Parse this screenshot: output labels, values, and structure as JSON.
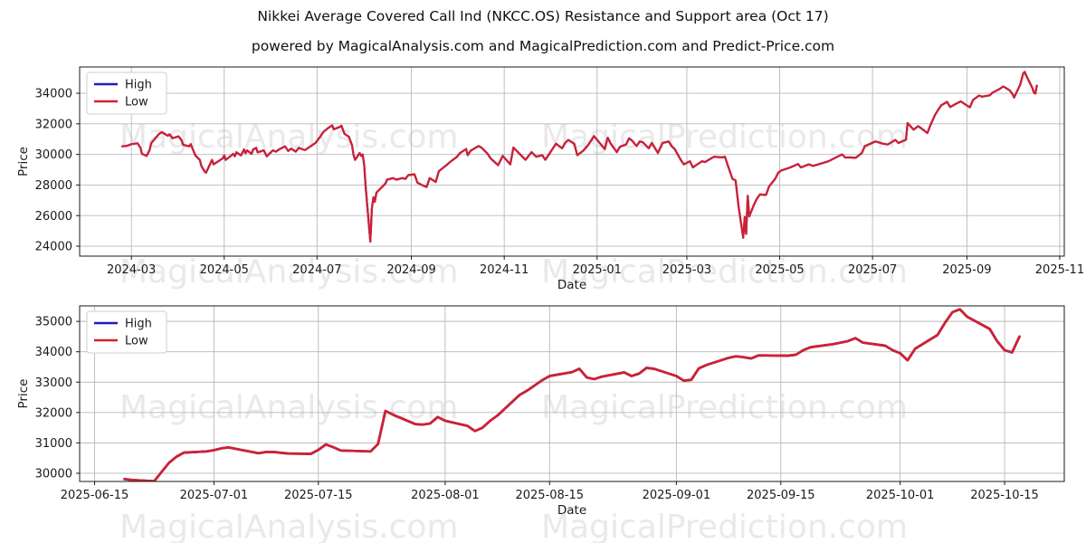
{
  "title": "Nikkei Average Covered Call Ind (NKCC.OS) Resistance and Support area (Oct 17)",
  "subtitle": "powered by MagicalAnalysis.com and MagicalPrediction.com and Predict-Price.com",
  "watermarks": {
    "texts": [
      "MagicalAnalysis.com",
      "MagicalPrediction.com"
    ]
  },
  "colors": {
    "high": "#1c1cbe",
    "low": "#d12030",
    "grid": "#b9b9b9",
    "spine": "#1a1a1a",
    "tick_text": "#1a1a1a",
    "watermark": "#e9e9e9",
    "background": "#ffffff",
    "legend_border": "#cfcfcf"
  },
  "chart_data": [
    {
      "name": "overview-chart",
      "type": "line",
      "xlabel": "Date",
      "ylabel": "Price",
      "grid": true,
      "xlim": [
        "2024-01-27",
        "2025-11-04"
      ],
      "ylim": [
        23350,
        35720
      ],
      "x_ticks": [
        {
          "d": "2024-03-01",
          "label": "2024-03"
        },
        {
          "d": "2024-05-01",
          "label": "2024-05"
        },
        {
          "d": "2024-07-01",
          "label": "2024-07"
        },
        {
          "d": "2024-09-01",
          "label": "2024-09"
        },
        {
          "d": "2024-11-01",
          "label": "2024-11"
        },
        {
          "d": "2025-01-01",
          "label": "2025-01"
        },
        {
          "d": "2025-03-01",
          "label": "2025-03"
        },
        {
          "d": "2025-05-01",
          "label": "2025-05"
        },
        {
          "d": "2025-07-01",
          "label": "2025-07"
        },
        {
          "d": "2025-09-01",
          "label": "2025-09"
        },
        {
          "d": "2025-11-01",
          "label": "2025-11"
        }
      ],
      "y_ticks": [
        {
          "v": 24000,
          "label": "24000"
        },
        {
          "v": 26000,
          "label": "26000"
        },
        {
          "v": 28000,
          "label": "28000"
        },
        {
          "v": 30000,
          "label": "30000"
        },
        {
          "v": 32000,
          "label": "32000"
        },
        {
          "v": 34000,
          "label": "34000"
        }
      ],
      "legend": {
        "position": "upper left",
        "entries": [
          {
            "label": "High",
            "color_key": "high"
          },
          {
            "label": "Low",
            "color_key": "low"
          }
        ]
      },
      "series": [
        {
          "name": "High",
          "color_key": "high",
          "y_ref": "Low",
          "note": "blue line exactly overlapped (hidden) by Low line in the pixels"
        },
        {
          "name": "Low",
          "color_key": "low",
          "dates": [
            "2024-02-24",
            "2024-02-27",
            "2024-03-01",
            "2024-03-05",
            "2024-03-07",
            "2024-03-08",
            "2024-03-11",
            "2024-03-13",
            "2024-03-14",
            "2024-03-19",
            "2024-03-21",
            "2024-03-25",
            "2024-03-26",
            "2024-03-28",
            "2024-04-01",
            "2024-04-03",
            "2024-04-04",
            "2024-04-08",
            "2024-04-09",
            "2024-04-10",
            "2024-04-12",
            "2024-04-15",
            "2024-04-16",
            "2024-04-18",
            "2024-04-19",
            "2024-04-23",
            "2024-04-24",
            "2024-04-30",
            "2024-05-01",
            "2024-05-02",
            "2024-05-07",
            "2024-05-08",
            "2024-05-09",
            "2024-05-12",
            "2024-05-14",
            "2024-05-15",
            "2024-05-16",
            "2024-05-19",
            "2024-05-20",
            "2024-05-22",
            "2024-05-23",
            "2024-05-27",
            "2024-05-29",
            "2024-06-02",
            "2024-06-04",
            "2024-06-06",
            "2024-06-10",
            "2024-06-12",
            "2024-06-14",
            "2024-06-17",
            "2024-06-19",
            "2024-06-23",
            "2024-06-26",
            "2024-06-30",
            "2024-07-03",
            "2024-07-05",
            "2024-07-08",
            "2024-07-11",
            "2024-07-12",
            "2024-07-16",
            "2024-07-17",
            "2024-07-19",
            "2024-07-22",
            "2024-07-24",
            "2024-07-25",
            "2024-07-26",
            "2024-07-29",
            "2024-07-30",
            "2024-07-31",
            "2024-08-01",
            "2024-08-02",
            "2024-08-05",
            "2024-08-06",
            "2024-08-07",
            "2024-08-08",
            "2024-08-09",
            "2024-08-13",
            "2024-08-15",
            "2024-08-16",
            "2024-08-20",
            "2024-08-22",
            "2024-08-26",
            "2024-08-28",
            "2024-08-30",
            "2024-09-03",
            "2024-09-05",
            "2024-09-09",
            "2024-09-11",
            "2024-09-13",
            "2024-09-17",
            "2024-09-19",
            "2024-09-24",
            "2024-09-27",
            "2024-10-01",
            "2024-10-03",
            "2024-10-07",
            "2024-10-08",
            "2024-10-10",
            "2024-10-15",
            "2024-10-17",
            "2024-10-21",
            "2024-10-23",
            "2024-10-28",
            "2024-10-31",
            "2024-11-05",
            "2024-11-07",
            "2024-11-11",
            "2024-11-13",
            "2024-11-15",
            "2024-11-19",
            "2024-11-22",
            "2024-11-26",
            "2024-11-28",
            "2024-12-03",
            "2024-12-05",
            "2024-12-09",
            "2024-12-11",
            "2024-12-13",
            "2024-12-17",
            "2024-12-19",
            "2024-12-23",
            "2024-12-26",
            "2024-12-30",
            "2025-01-06",
            "2025-01-08",
            "2025-01-10",
            "2025-01-14",
            "2025-01-16",
            "2025-01-20",
            "2025-01-22",
            "2025-01-24",
            "2025-01-27",
            "2025-01-29",
            "2025-01-31",
            "2025-02-04",
            "2025-02-06",
            "2025-02-10",
            "2025-02-13",
            "2025-02-17",
            "2025-02-19",
            "2025-02-21",
            "2025-02-25",
            "2025-02-27",
            "2025-03-03",
            "2025-03-05",
            "2025-03-07",
            "2025-03-11",
            "2025-03-13",
            "2025-03-17",
            "2025-03-19",
            "2025-03-24",
            "2025-03-26",
            "2025-03-28",
            "2025-03-31",
            "2025-04-02",
            "2025-04-04",
            "2025-04-07",
            "2025-04-08",
            "2025-04-09",
            "2025-04-10",
            "2025-04-11",
            "2025-04-14",
            "2025-04-16",
            "2025-04-18",
            "2025-04-22",
            "2025-04-24",
            "2025-04-28",
            "2025-04-30",
            "2025-05-02",
            "2025-05-08",
            "2025-05-13",
            "2025-05-15",
            "2025-05-20",
            "2025-05-23",
            "2025-05-28",
            "2025-06-02",
            "2025-06-05",
            "2025-06-09",
            "2025-06-11",
            "2025-06-13",
            "2025-06-17",
            "2025-06-20",
            "2025-06-24",
            "2025-06-26",
            "2025-06-30",
            "2025-07-03",
            "2025-07-08",
            "2025-07-11",
            "2025-07-16",
            "2025-07-18",
            "2025-07-23",
            "2025-07-24",
            "2025-07-28",
            "2025-07-31",
            "2025-08-04",
            "2025-08-06",
            "2025-08-08",
            "2025-08-11",
            "2025-08-13",
            "2025-08-15",
            "2025-08-19",
            "2025-08-21",
            "2025-08-25",
            "2025-08-28",
            "2025-09-01",
            "2025-09-03",
            "2025-09-05",
            "2025-09-09",
            "2025-09-11",
            "2025-09-16",
            "2025-09-18",
            "2025-09-22",
            "2025-09-25",
            "2025-09-29",
            "2025-10-01",
            "2025-10-02",
            "2025-10-06",
            "2025-10-08",
            "2025-10-09",
            "2025-10-10",
            "2025-10-14",
            "2025-10-15",
            "2025-10-16",
            "2025-10-17"
          ],
          "values": [
            30530,
            30560,
            30670,
            30730,
            30430,
            30040,
            29900,
            30300,
            30730,
            31320,
            31460,
            31220,
            31320,
            31060,
            31180,
            30920,
            30630,
            30530,
            30670,
            30430,
            29940,
            29640,
            29250,
            28900,
            28800,
            29640,
            29350,
            29740,
            29940,
            29640,
            30040,
            29880,
            30140,
            29940,
            30330,
            30080,
            30270,
            30040,
            30330,
            30430,
            30130,
            30270,
            29880,
            30270,
            30180,
            30330,
            30530,
            30230,
            30380,
            30180,
            30430,
            30280,
            30480,
            30750,
            31150,
            31450,
            31710,
            31900,
            31650,
            31800,
            31880,
            31350,
            31150,
            30600,
            29950,
            29650,
            30100,
            29900,
            30000,
            29250,
            27850,
            24300,
            26450,
            27200,
            26900,
            27500,
            27900,
            28100,
            28350,
            28450,
            28350,
            28450,
            28400,
            28650,
            28700,
            28150,
            27950,
            27870,
            28450,
            28200,
            28900,
            29300,
            29550,
            29850,
            30100,
            30350,
            29950,
            30250,
            30550,
            30450,
            30050,
            29750,
            29300,
            29900,
            29350,
            30450,
            30050,
            29850,
            29650,
            30150,
            29850,
            29950,
            29650,
            30400,
            30700,
            30400,
            30750,
            30950,
            30700,
            29950,
            30250,
            30600,
            31200,
            30350,
            31100,
            30700,
            30150,
            30500,
            30650,
            31050,
            30900,
            30550,
            30850,
            30800,
            30400,
            30750,
            30100,
            30750,
            30850,
            30550,
            30350,
            29650,
            29350,
            29550,
            29150,
            29300,
            29550,
            29500,
            29750,
            29850,
            29800,
            29850,
            29250,
            28400,
            28300,
            26600,
            24550,
            25900,
            24800,
            27300,
            25950,
            26700,
            27100,
            27380,
            27350,
            27900,
            28400,
            28800,
            28950,
            29150,
            29370,
            29150,
            29350,
            29250,
            29400,
            29550,
            29700,
            29900,
            30000,
            29800,
            29800,
            29780,
            30100,
            30550,
            30720,
            30850,
            30700,
            30650,
            30950,
            30750,
            30960,
            32050,
            31620,
            31850,
            31560,
            31400,
            31900,
            32580,
            32890,
            33200,
            33440,
            33100,
            33320,
            33470,
            33200,
            33080,
            33560,
            33850,
            33780,
            33870,
            34050,
            34250,
            34450,
            34200,
            33950,
            33720,
            34550,
            35300,
            35400,
            35150,
            34350,
            34050,
            33980,
            34500
          ]
        }
      ]
    },
    {
      "name": "detail-chart",
      "type": "line",
      "xlabel": "Date",
      "ylabel": "Price",
      "grid": true,
      "xlim": [
        "2025-06-13",
        "2025-10-23"
      ],
      "ylim": [
        29730,
        35510
      ],
      "x_ticks": [
        {
          "d": "2025-06-15",
          "label": "2025-06-15"
        },
        {
          "d": "2025-07-01",
          "label": "2025-07-01"
        },
        {
          "d": "2025-07-15",
          "label": "2025-07-15"
        },
        {
          "d": "2025-08-01",
          "label": "2025-08-01"
        },
        {
          "d": "2025-08-15",
          "label": "2025-08-15"
        },
        {
          "d": "2025-09-01",
          "label": "2025-09-01"
        },
        {
          "d": "2025-09-15",
          "label": "2025-09-15"
        },
        {
          "d": "2025-10-01",
          "label": "2025-10-01"
        },
        {
          "d": "2025-10-15",
          "label": "2025-10-15"
        }
      ],
      "y_ticks": [
        {
          "v": 30000,
          "label": "30000"
        },
        {
          "v": 31000,
          "label": "31000"
        },
        {
          "v": 32000,
          "label": "32000"
        },
        {
          "v": 33000,
          "label": "33000"
        },
        {
          "v": 34000,
          "label": "34000"
        },
        {
          "v": 35000,
          "label": "35000"
        }
      ],
      "legend": {
        "position": "upper left",
        "entries": [
          {
            "label": "High",
            "color_key": "high"
          },
          {
            "label": "Low",
            "color_key": "low"
          }
        ]
      },
      "series": [
        {
          "name": "High",
          "color_key": "high",
          "y_ref": "Low",
          "note": "blue line exactly overlapped (hidden) by Low line in the pixels"
        },
        {
          "name": "Low",
          "color_key": "low",
          "dates": [
            "2025-06-19",
            "2025-06-20",
            "2025-06-23",
            "2025-06-24",
            "2025-06-25",
            "2025-06-26",
            "2025-06-27",
            "2025-06-30",
            "2025-07-01",
            "2025-07-02",
            "2025-07-03",
            "2025-07-04",
            "2025-07-07",
            "2025-07-08",
            "2025-07-09",
            "2025-07-10",
            "2025-07-11",
            "2025-07-14",
            "2025-07-15",
            "2025-07-16",
            "2025-07-17",
            "2025-07-18",
            "2025-07-22",
            "2025-07-23",
            "2025-07-24",
            "2025-07-25",
            "2025-07-28",
            "2025-07-29",
            "2025-07-30",
            "2025-07-31",
            "2025-08-01",
            "2025-08-04",
            "2025-08-05",
            "2025-08-06",
            "2025-08-07",
            "2025-08-08",
            "2025-08-11",
            "2025-08-12",
            "2025-08-13",
            "2025-08-14",
            "2025-08-15",
            "2025-08-18",
            "2025-08-19",
            "2025-08-20",
            "2025-08-21",
            "2025-08-22",
            "2025-08-25",
            "2025-08-26",
            "2025-08-27",
            "2025-08-28",
            "2025-08-29",
            "2025-09-01",
            "2025-09-02",
            "2025-09-03",
            "2025-09-04",
            "2025-09-05",
            "2025-09-08",
            "2025-09-09",
            "2025-09-10",
            "2025-09-11",
            "2025-09-12",
            "2025-09-16",
            "2025-09-17",
            "2025-09-18",
            "2025-09-19",
            "2025-09-22",
            "2025-09-24",
            "2025-09-25",
            "2025-09-26",
            "2025-09-29",
            "2025-09-30",
            "2025-10-01",
            "2025-10-02",
            "2025-10-03",
            "2025-10-06",
            "2025-10-07",
            "2025-10-08",
            "2025-10-09",
            "2025-10-10",
            "2025-10-13",
            "2025-10-14",
            "2025-10-15",
            "2025-10-16",
            "2025-10-17"
          ],
          "values": [
            29810,
            29780,
            29740,
            30050,
            30350,
            30550,
            30680,
            30720,
            30760,
            30820,
            30850,
            30800,
            30660,
            30700,
            30700,
            30670,
            30650,
            30640,
            30770,
            30950,
            30860,
            30750,
            30720,
            30960,
            32050,
            31930,
            31620,
            31600,
            31640,
            31850,
            31730,
            31560,
            31390,
            31500,
            31720,
            31900,
            32580,
            32720,
            32890,
            33060,
            33200,
            33330,
            33440,
            33150,
            33100,
            33180,
            33320,
            33200,
            33280,
            33470,
            33440,
            33200,
            33050,
            33080,
            33450,
            33560,
            33800,
            33850,
            33820,
            33780,
            33880,
            33870,
            33900,
            34050,
            34150,
            34250,
            34350,
            34450,
            34300,
            34200,
            34050,
            33950,
            33720,
            34100,
            34550,
            34950,
            35300,
            35400,
            35150,
            34750,
            34350,
            34050,
            33980,
            34500
          ]
        }
      ]
    }
  ]
}
